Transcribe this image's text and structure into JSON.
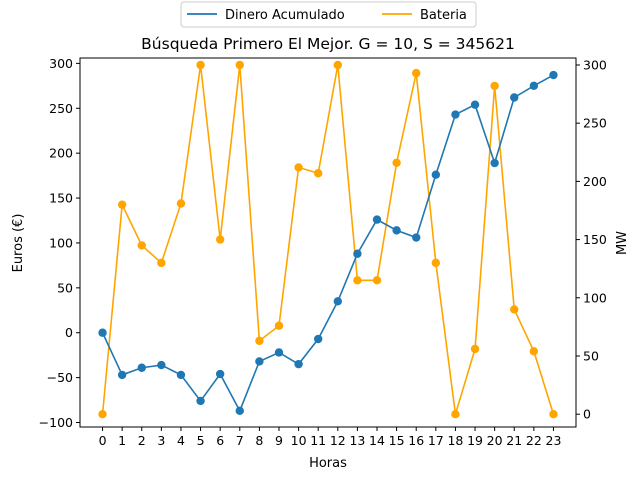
{
  "chart_data": {
    "type": "line",
    "title": "Búsqueda Primero El Mejor. G = 10, S = 345621",
    "xlabel": "Horas",
    "ylabel_left": "Euros (€)",
    "ylabel_right": "MW",
    "x": [
      0,
      1,
      2,
      3,
      4,
      5,
      6,
      7,
      8,
      9,
      10,
      11,
      12,
      13,
      14,
      15,
      16,
      17,
      18,
      19,
      20,
      21,
      22,
      23
    ],
    "x_ticks": [
      "0",
      "1",
      "2",
      "3",
      "4",
      "5",
      "6",
      "7",
      "8",
      "9",
      "10",
      "11",
      "12",
      "13",
      "14",
      "15",
      "16",
      "17",
      "18",
      "19",
      "20",
      "21",
      "22",
      "23"
    ],
    "y_left_ticks": [
      "−100",
      "−50",
      "0",
      "50",
      "100",
      "150",
      "200",
      "250",
      "300"
    ],
    "y_right_ticks": [
      "0",
      "50",
      "100",
      "150",
      "200",
      "250",
      "300"
    ],
    "ylim_left": [
      -105,
      306
    ],
    "ylim_right": [
      -11,
      306
    ],
    "series": [
      {
        "name": "Dinero Acumulado",
        "axis": "left",
        "color": "#1f77b4",
        "values": [
          0,
          -47,
          -39,
          -36,
          -47,
          -76,
          -46,
          -87,
          -32,
          -22,
          -35,
          -7,
          35,
          88,
          126,
          114,
          106,
          176,
          243,
          254,
          189,
          262,
          275,
          287
        ]
      },
      {
        "name": "Bateria",
        "axis": "right",
        "color": "#ffa500",
        "values": [
          0,
          180,
          145,
          130,
          181,
          300,
          150,
          300,
          63,
          76,
          212,
          207,
          300,
          115,
          115,
          216,
          293,
          130,
          0,
          56,
          282,
          90,
          54,
          0
        ]
      }
    ],
    "legend_position": "top-center",
    "grid": false
  }
}
